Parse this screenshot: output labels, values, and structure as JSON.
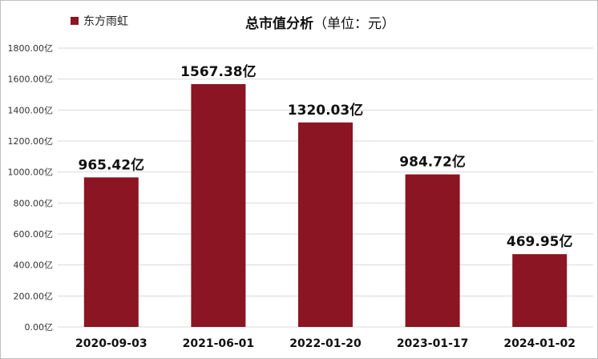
{
  "chart_data": {
    "type": "bar",
    "title": "总市值分析",
    "subtitle": "（单位：元）",
    "legend": {
      "label": "东方雨虹",
      "placement": "top-left"
    },
    "categories": [
      "2020-09-03",
      "2021-06-01",
      "2022-01-20",
      "2023-01-17",
      "2024-01-02"
    ],
    "series": [
      {
        "name": "东方雨虹",
        "values": [
          965.42,
          1567.38,
          1320.03,
          984.72,
          469.95
        ]
      }
    ],
    "data_labels": [
      "965.42亿",
      "1567.38亿",
      "1320.03亿",
      "984.72亿",
      "469.95亿"
    ],
    "yticks": [
      0,
      200,
      400,
      600,
      800,
      1000,
      1200,
      1400,
      1600,
      1800
    ],
    "ytick_labels": [
      "0.00亿",
      "200.00亿",
      "400.00亿",
      "600.00亿",
      "800.00亿",
      "1000.00亿",
      "1200.00亿",
      "1400.00亿",
      "1600.00亿",
      "1800.00亿"
    ],
    "ylim": [
      0,
      1800
    ],
    "grid": true,
    "colors": {
      "bar": "#8b1522",
      "grid": "#d9d9d9"
    }
  }
}
